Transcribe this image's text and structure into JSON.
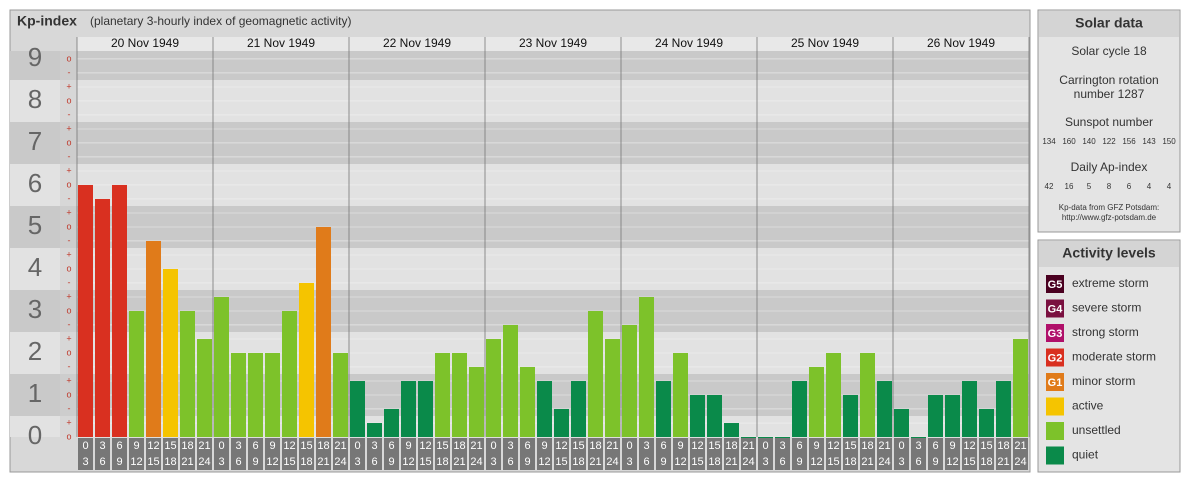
{
  "chart_data": {
    "type": "bar",
    "title": "Kp-index",
    "subtitle": "(planetary 3-hourly index of geomagnetic activity)",
    "ylim": [
      0,
      9.19
    ],
    "yticks": [
      0,
      1,
      2,
      3,
      4,
      5,
      6,
      7,
      8,
      9
    ],
    "minor_ticks": [
      {
        "value": 0,
        "label": "o"
      },
      {
        "value": 0.333,
        "label": "+"
      },
      {
        "value": 0.667,
        "label": "-"
      },
      {
        "value": 1,
        "label": "o"
      },
      {
        "value": 1.333,
        "label": "+"
      },
      {
        "value": 1.667,
        "label": "-"
      },
      {
        "value": 2,
        "label": "o"
      },
      {
        "value": 2.333,
        "label": "+"
      },
      {
        "value": 2.667,
        "label": "-"
      },
      {
        "value": 3,
        "label": "o"
      },
      {
        "value": 3.333,
        "label": "+"
      },
      {
        "value": 3.667,
        "label": "-"
      },
      {
        "value": 4,
        "label": "o"
      },
      {
        "value": 4.333,
        "label": "+"
      },
      {
        "value": 4.667,
        "label": "-"
      },
      {
        "value": 5,
        "label": "o"
      },
      {
        "value": 5.333,
        "label": "+"
      },
      {
        "value": 5.667,
        "label": "-"
      },
      {
        "value": 6,
        "label": "o"
      },
      {
        "value": 6.333,
        "label": "+"
      },
      {
        "value": 6.667,
        "label": "-"
      },
      {
        "value": 7,
        "label": "o"
      },
      {
        "value": 7.333,
        "label": "+"
      },
      {
        "value": 7.667,
        "label": "-"
      },
      {
        "value": 8,
        "label": "o"
      },
      {
        "value": 8.333,
        "label": "+"
      },
      {
        "value": 8.667,
        "label": "-"
      },
      {
        "value": 9,
        "label": "o"
      }
    ],
    "slots": [
      [
        0,
        3
      ],
      [
        3,
        6
      ],
      [
        6,
        9
      ],
      [
        9,
        12
      ],
      [
        12,
        15
      ],
      [
        15,
        18
      ],
      [
        18,
        21
      ],
      [
        21,
        24
      ]
    ],
    "days": [
      {
        "date": "20 Nov 1949",
        "values": [
          6,
          5.667,
          6,
          3,
          4.667,
          4,
          3,
          2.333
        ],
        "colors": [
          "#d93020",
          "#d93020",
          "#d93020",
          "#7dc22a",
          "#e07b1a",
          "#f5c400",
          "#7dc22a",
          "#7dc22a"
        ]
      },
      {
        "date": "21 Nov 1949",
        "values": [
          3.333,
          2,
          2,
          2,
          3,
          3.667,
          5,
          2
        ],
        "colors": [
          "#7dc22a",
          "#7dc22a",
          "#7dc22a",
          "#7dc22a",
          "#7dc22a",
          "#f5c400",
          "#e07b1a",
          "#7dc22a"
        ]
      },
      {
        "date": "22 Nov 1949",
        "values": [
          1.333,
          0.333,
          0.667,
          1.333,
          1.333,
          2,
          2,
          1.667
        ],
        "colors": [
          "#0a8a4a",
          "#0a8a4a",
          "#0a8a4a",
          "#0a8a4a",
          "#0a8a4a",
          "#7dc22a",
          "#7dc22a",
          "#7dc22a"
        ]
      },
      {
        "date": "23 Nov 1949",
        "values": [
          2.333,
          2.667,
          1.667,
          1.333,
          0.667,
          1.333,
          3,
          2.333
        ],
        "colors": [
          "#7dc22a",
          "#7dc22a",
          "#7dc22a",
          "#0a8a4a",
          "#0a8a4a",
          "#0a8a4a",
          "#7dc22a",
          "#7dc22a"
        ]
      },
      {
        "date": "24 Nov 1949",
        "values": [
          2.667,
          3.333,
          1.333,
          2,
          1,
          1,
          0.333,
          0
        ],
        "colors": [
          "#7dc22a",
          "#7dc22a",
          "#0a8a4a",
          "#7dc22a",
          "#0a8a4a",
          "#0a8a4a",
          "#0a8a4a",
          "#0a8a4a"
        ]
      },
      {
        "date": "25 Nov 1949",
        "values": [
          0,
          0,
          1.333,
          1.667,
          2,
          1,
          2,
          1.333
        ],
        "colors": [
          "#0a8a4a",
          "#0a8a4a",
          "#0a8a4a",
          "#7dc22a",
          "#7dc22a",
          "#0a8a4a",
          "#7dc22a",
          "#0a8a4a"
        ]
      },
      {
        "date": "26 Nov 1949",
        "values": [
          0.667,
          0,
          1,
          1,
          1.333,
          0.667,
          1.333,
          2.333
        ],
        "colors": [
          "#0a8a4a",
          "#0a8a4a",
          "#0a8a4a",
          "#0a8a4a",
          "#0a8a4a",
          "#0a8a4a",
          "#0a8a4a",
          "#7dc22a"
        ]
      }
    ]
  },
  "solar_data": {
    "title": "Solar data",
    "cycle": "Solar cycle 18",
    "carrington": [
      "Carrington rotation",
      "number 1287"
    ],
    "sunspot_title": "Sunspot number",
    "sunspot_values": [
      134,
      160,
      140,
      122,
      156,
      143,
      150
    ],
    "ap_title": "Daily Ap-index",
    "ap_values": [
      42,
      16,
      5,
      8,
      6,
      4,
      4
    ],
    "source": [
      "Kp-data from GFZ Potsdam:",
      "http://www.gfz-potsdam.de"
    ]
  },
  "activity_levels": {
    "title": "Activity levels",
    "levels": [
      {
        "code": "G5",
        "label": "extreme storm",
        "color": "#4a0020"
      },
      {
        "code": "G4",
        "label": "severe storm",
        "color": "#7a1040"
      },
      {
        "code": "G3",
        "label": "strong storm",
        "color": "#b0106a"
      },
      {
        "code": "G2",
        "label": "moderate storm",
        "color": "#d93020"
      },
      {
        "code": "G1",
        "label": "minor storm",
        "color": "#e07b1a"
      },
      {
        "label": "active",
        "color": "#f5c400"
      },
      {
        "label": "unsettled",
        "color": "#7dc22a"
      },
      {
        "label": "quiet",
        "color": "#0a8a4a"
      }
    ]
  }
}
